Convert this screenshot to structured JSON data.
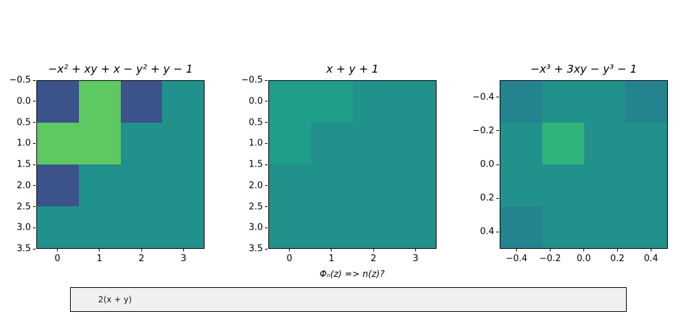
{
  "figure": {
    "background": "#ffffff"
  },
  "question": {
    "text": "Φₙ(z) => n(z)?"
  },
  "textbox": {
    "value": "2(x + y)",
    "background": "#f0f0f0",
    "border_color": "#000000"
  },
  "palette": {
    "base_teal": "#21918c",
    "dark_blue": "#3b528b",
    "bright_green": "#5ec962",
    "light_teal": "#1f9e8a",
    "dark_teal": "#24838e",
    "mid_green": "#2fb47c"
  },
  "chart_data": [
    {
      "type": "heatmap",
      "title": "−x² + xy + x − y² + y − 1",
      "x_range": [
        -0.5,
        3.5
      ],
      "y_range": [
        -0.5,
        3.5
      ],
      "grid_on": false,
      "xticks": [
        {
          "label": "0",
          "pos": 0.125
        },
        {
          "label": "1",
          "pos": 0.375
        },
        {
          "label": "2",
          "pos": 0.625
        },
        {
          "label": "3",
          "pos": 0.875
        }
      ],
      "yticks": [
        {
          "label": "−0.5",
          "pos": 0.0
        },
        {
          "label": "0.0",
          "pos": 0.125
        },
        {
          "label": "0.5",
          "pos": 0.25
        },
        {
          "label": "1.0",
          "pos": 0.375
        },
        {
          "label": "1.5",
          "pos": 0.5
        },
        {
          "label": "2.0",
          "pos": 0.625
        },
        {
          "label": "2.5",
          "pos": 0.75
        },
        {
          "label": "3.0",
          "pos": 0.875
        },
        {
          "label": "3.5",
          "pos": 1.0
        }
      ],
      "grid_colors": [
        [
          "#3b528b",
          "#5ec962",
          "#3b528b",
          "#21918c"
        ],
        [
          "#5ec962",
          "#5ec962",
          "#21918c",
          "#21918c"
        ],
        [
          "#3b528b",
          "#21918c",
          "#21918c",
          "#21918c"
        ],
        [
          "#21918c",
          "#21918c",
          "#21918c",
          "#21918c"
        ]
      ]
    },
    {
      "type": "heatmap",
      "title": "x + y + 1",
      "x_range": [
        -0.5,
        3.5
      ],
      "y_range": [
        -0.5,
        3.5
      ],
      "grid_on": false,
      "xticks": [
        {
          "label": "0",
          "pos": 0.125
        },
        {
          "label": "1",
          "pos": 0.375
        },
        {
          "label": "2",
          "pos": 0.625
        },
        {
          "label": "3",
          "pos": 0.875
        }
      ],
      "yticks": [
        {
          "label": "−0.5",
          "pos": 0.0
        },
        {
          "label": "0.0",
          "pos": 0.125
        },
        {
          "label": "0.5",
          "pos": 0.25
        },
        {
          "label": "1.0",
          "pos": 0.375
        },
        {
          "label": "1.5",
          "pos": 0.5
        },
        {
          "label": "2.0",
          "pos": 0.625
        },
        {
          "label": "2.5",
          "pos": 0.75
        },
        {
          "label": "3.0",
          "pos": 0.875
        },
        {
          "label": "3.5",
          "pos": 1.0
        }
      ],
      "grid_colors": [
        [
          "#1f9e8a",
          "#1f9e8a",
          "#21918c",
          "#21918c"
        ],
        [
          "#1f9e8a",
          "#21918c",
          "#21918c",
          "#21918c"
        ],
        [
          "#21918c",
          "#21918c",
          "#21918c",
          "#21918c"
        ],
        [
          "#21918c",
          "#21918c",
          "#21918c",
          "#21918c"
        ]
      ]
    },
    {
      "type": "heatmap",
      "title": "−x³ + 3xy − y³ − 1",
      "x_range": [
        -0.5,
        0.5
      ],
      "y_range": [
        -0.5,
        0.5
      ],
      "grid_on": false,
      "xticks": [
        {
          "label": "−0.4",
          "pos": 0.1
        },
        {
          "label": "−0.2",
          "pos": 0.3
        },
        {
          "label": "0.0",
          "pos": 0.5
        },
        {
          "label": "0.2",
          "pos": 0.7
        },
        {
          "label": "0.4",
          "pos": 0.9
        }
      ],
      "yticks": [
        {
          "label": "−0.4",
          "pos": 0.1
        },
        {
          "label": "−0.2",
          "pos": 0.3
        },
        {
          "label": "0.0",
          "pos": 0.5
        },
        {
          "label": "0.2",
          "pos": 0.7
        },
        {
          "label": "0.4",
          "pos": 0.9
        }
      ],
      "grid_colors": [
        [
          "#24838e",
          "#21918c",
          "#21918c",
          "#24838e"
        ],
        [
          "#21918c",
          "#2fb47c",
          "#21918c",
          "#21918c"
        ],
        [
          "#21918c",
          "#21918c",
          "#21918c",
          "#21918c"
        ],
        [
          "#24838e",
          "#21918c",
          "#21918c",
          "#21918c"
        ]
      ]
    }
  ]
}
